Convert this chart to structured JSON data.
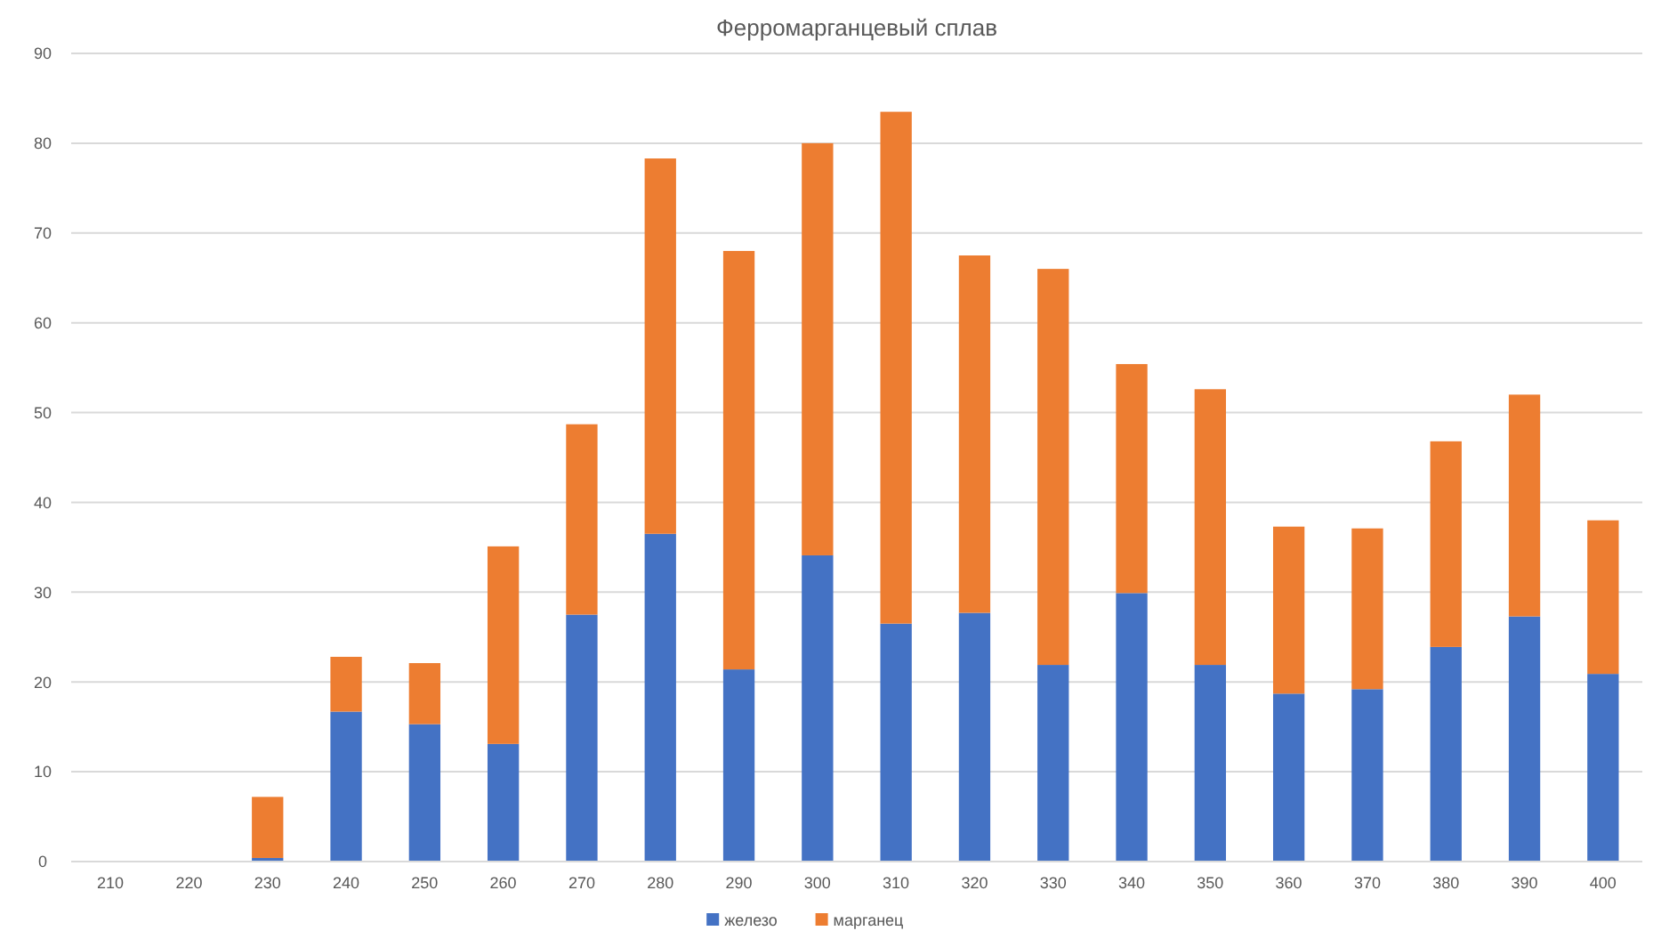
{
  "chart_data": {
    "type": "bar",
    "title": "Ферромарганцевый сплав",
    "stacked": true,
    "categories": [
      "210",
      "220",
      "230",
      "240",
      "250",
      "260",
      "270",
      "280",
      "290",
      "300",
      "310",
      "320",
      "330",
      "340",
      "350",
      "360",
      "370",
      "380",
      "390",
      "400"
    ],
    "series": [
      {
        "name": "железо",
        "color": "#4472c4",
        "values": [
          0,
          0,
          0.4,
          16.7,
          15.3,
          13.1,
          27.5,
          36.5,
          21.4,
          34.1,
          26.5,
          27.7,
          21.9,
          29.9,
          21.9,
          18.7,
          19.2,
          23.9,
          27.3,
          20.9
        ]
      },
      {
        "name": "марганец",
        "color": "#ed7d31",
        "values": [
          0,
          0,
          6.8,
          6.1,
          6.8,
          22.0,
          21.2,
          41.8,
          46.6,
          45.9,
          57.0,
          39.8,
          44.1,
          25.5,
          30.7,
          18.6,
          17.9,
          22.9,
          24.7,
          17.1
        ]
      }
    ],
    "ylim": [
      0,
      90
    ],
    "yticks": [
      0,
      10,
      20,
      30,
      40,
      50,
      60,
      70,
      80,
      90
    ],
    "grid": "y",
    "legend": "bottom"
  }
}
